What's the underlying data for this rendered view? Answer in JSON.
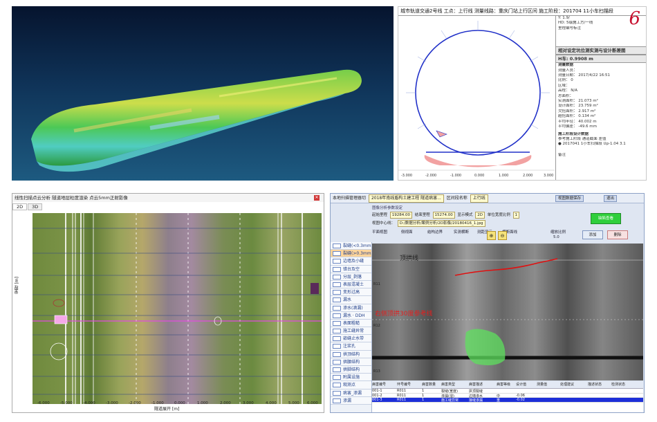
{
  "section_report": {
    "header": "城市轨道交通2号线   工点：上行线   测量线路：重庆门站上行区间   施工阶段：201704 11小车扫描段",
    "info_left": [
      "Y: 1.9/",
      "HD: 5级施工方/一线",
      "里程编号标注"
    ],
    "deviation_title": "相对设定坑位测实测与设计断差图",
    "mileage": "H车: 0.9908 m",
    "stats_title": "测量数据",
    "stats": [
      "测量人员：",
      "测量日期：    2017/4/22 16:51",
      "比例：          0",
      "区域：",
      "高程：          N/A",
      "总面积：",
      "实测面积：     21.073 m²",
      "设计面积：     23.759 m²",
      "欠挖面积：     2.917 m²",
      "超挖面积：     0.134 m²",
      "平均半径：     40.002 m",
      "平均偏差：     -49.6 mm"
    ],
    "compare_title": "施工阶段设计数据",
    "compare_head": [
      "参考施工阶段",
      "通道截面",
      "差值"
    ],
    "compare_row": [
      "● 2017041 1小车扫描段",
      "Up-1.04",
      "3.1"
    ],
    "notes_label": "备注",
    "x_ticks": [
      "-3.000",
      "-2.000",
      "-1.000",
      "0.000",
      "1.000",
      "2.000",
      "3.000"
    ],
    "logo_glyph": "6"
  },
  "unrolled_map": {
    "title": "线性扫描点云分析  隧道地层粒度渲染  点云5mm正射影像",
    "tabs": [
      "2D",
      "3D"
    ],
    "yaxis_label": "里程 [m]",
    "xaxis_label": "隧道展开 [m]",
    "x_ticks": [
      "-6.000",
      "-5.000",
      "-4.000",
      "-3.000",
      "-2.000",
      "-1.000",
      "0.000",
      "1.000",
      "2.000",
      "3.000",
      "4.000",
      "5.000",
      "6.000"
    ]
  },
  "inspection": {
    "toolbar_prefix": "本地扫描管理器切",
    "project_select": "2018年南线盾构土建工程 隧道病害...",
    "segment_label": "区间段名称",
    "segment_select": "上行线",
    "start_label": "起始里程",
    "start_value": "19284.00",
    "end_label": "结束里程",
    "end_value": "15274.00",
    "mode_label": "显示模式",
    "mode_value": "2D",
    "param_title": "图像分析参数设定",
    "rate_label": "单位宽度比例",
    "rate_value": "1",
    "path_label": "视图中心线：",
    "path_value": "D:/数据分析/案例分析/2D影像/20180416_1.jpg",
    "tb_btn1": "视图数据保存",
    "tb_btn2": "退出",
    "green_btn": "缺陷查看",
    "opt_labels": [
      "平面视图",
      "侧视面",
      "结构边界",
      "实测横断",
      "测距显示",
      "横断面线",
      "缩放比例"
    ],
    "zoom_value": "5.0",
    "btn_add": "添加",
    "btn_del": "删除",
    "nav": [
      {
        "label": "裂缝(<0.3mm)",
        "active": false
      },
      {
        "label": "裂缝(>0.3mm)",
        "active": true
      },
      {
        "label": "边墙及小缝",
        "active": false
      },
      {
        "label": "错台及空",
        "active": false
      },
      {
        "label": "分层_剥落",
        "active": false
      },
      {
        "label": "表层混凝土",
        "active": false
      },
      {
        "label": "变形过高",
        "active": false
      },
      {
        "label": "漏水",
        "active": false
      },
      {
        "label": "渗水(滴漏)",
        "active": false
      },
      {
        "label": "漏水 · DDH",
        "active": false
      },
      {
        "label": "表面粗糙",
        "active": false
      },
      {
        "label": "施工缝异常",
        "active": false
      },
      {
        "label": "嵌缝止水带",
        "active": false
      },
      {
        "label": "注浆孔",
        "active": false
      },
      {
        "label": "拱顶结构",
        "active": false
      },
      {
        "label": "拱腰结构",
        "active": false
      },
      {
        "label": "拱脚结构",
        "active": false
      },
      {
        "label": "附属设施",
        "active": false
      },
      {
        "label": "观测点",
        "active": false
      },
      {
        "label": "病害_渗漏",
        "active": false
      },
      {
        "label": "渗漏",
        "active": false
      }
    ],
    "image_label_1": "顶拱线",
    "image_label_2": "右侧顶拱30度参考线",
    "ring_labels": [
      "R11",
      "R12",
      "R13"
    ],
    "table_headers": [
      "病害编号",
      "环号编号",
      "病害数量",
      "病害类型",
      "病害描述",
      "病害等级",
      "设计值",
      "测量值",
      "处理建议",
      "描述状态",
      "检测状态"
    ],
    "table_rows": [
      [
        "001-1",
        "R011",
        "1",
        "裂缝(宽度)",
        "拱顶裂缝",
        "",
        "",
        "",
        "",
        "",
        ""
      ],
      [
        "001-2",
        "R011",
        "1",
        "渗漏(湿)",
        "边墙渗水",
        "中",
        "-0.06",
        "",
        "",
        "",
        ""
      ],
      [
        "001-3",
        "R011",
        "1",
        "施工缝异常",
        "接缝渗漏",
        "重",
        "-0.02",
        "",
        "",
        "",
        ""
      ]
    ]
  }
}
